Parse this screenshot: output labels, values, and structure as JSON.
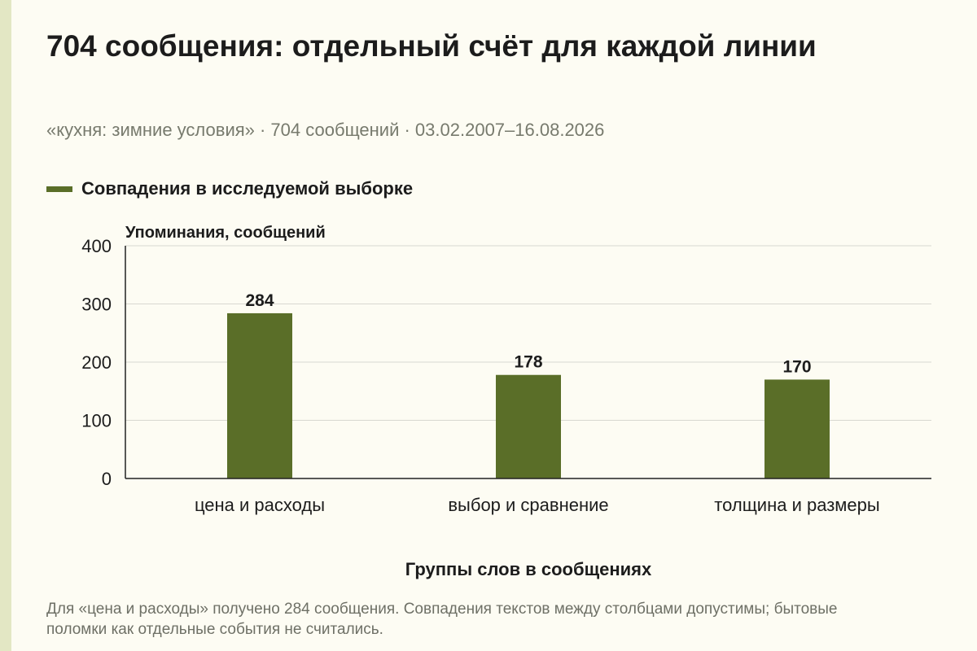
{
  "title": "704 сообщения: отдельный счёт для каждой линии",
  "subtitle": "«кухня: зимние условия» · 704 сообщений · 03.02.2007–16.08.2026",
  "footnote": "Для «цена и расходы» получено 284 сообщения. Совпадения текстов между столбцами допустимы; бытовые поломки как отдельные события не считались.",
  "colors": {
    "bar": "#5a6e28",
    "grid": "#d8d8d0",
    "axis": "#222222",
    "background": "#fdfcf3",
    "accent_strip": "#e3e7c4"
  },
  "chart_data": {
    "type": "bar",
    "categories": [
      "цена и расходы",
      "выбор и сравнение",
      "толщина и размеры"
    ],
    "series": [
      {
        "name": "Совпадения в исследуемой выборке",
        "values": [
          284,
          178,
          170
        ]
      }
    ],
    "data_labels": [
      "284",
      "178",
      "170"
    ],
    "xlabel": "Группы слов в сообщениях",
    "ylabel": "Упоминания, сообщений",
    "ylim": [
      0,
      400
    ],
    "yticks": [
      0,
      100,
      200,
      300,
      400
    ],
    "grid": true,
    "legend_position": "top-left"
  }
}
